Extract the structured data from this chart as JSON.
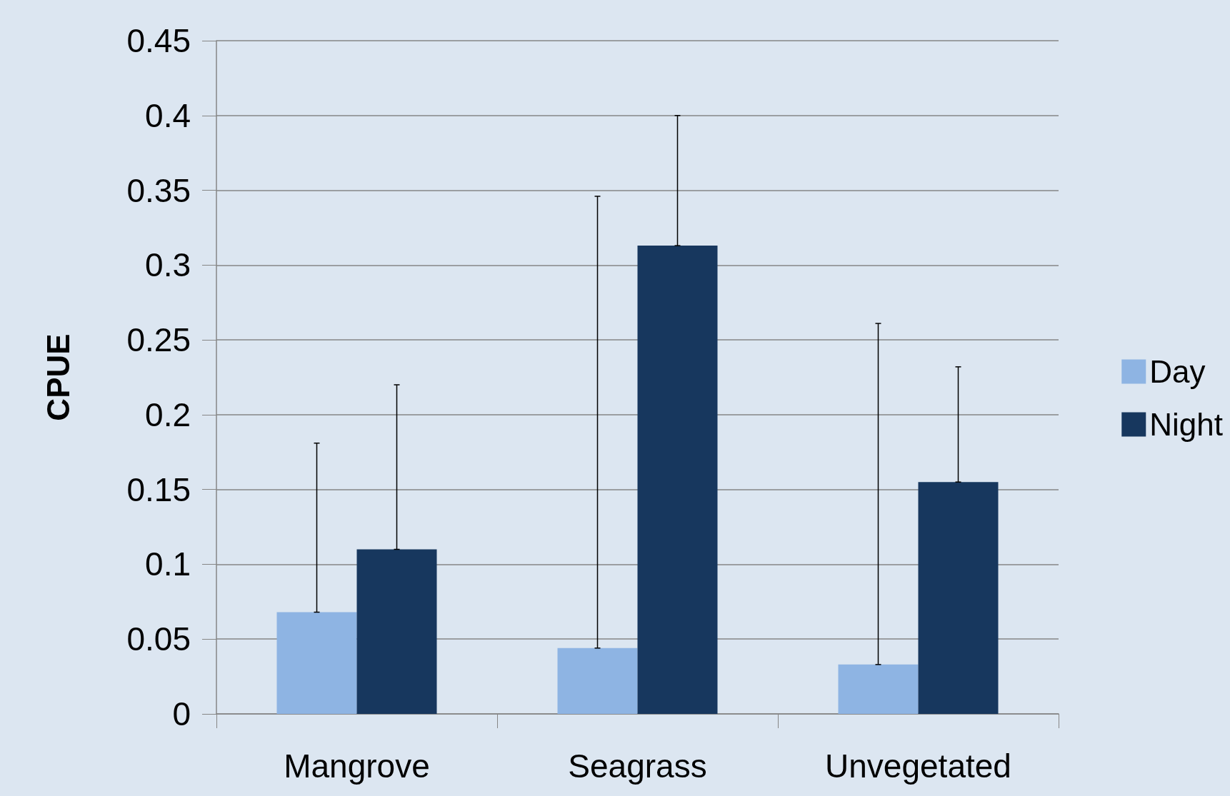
{
  "chart_data": {
    "type": "bar",
    "ylabel": "CPUE",
    "categories": [
      "Mangrove",
      "Seagrass",
      "Unvegetated"
    ],
    "series": [
      {
        "name": "Day",
        "color": "#8eb4e3",
        "values": [
          0.068,
          0.044,
          0.033
        ],
        "errors": [
          [
            0.068,
            0.181
          ],
          [
            0.044,
            0.346
          ],
          [
            0.033,
            0.261
          ]
        ]
      },
      {
        "name": "Night",
        "color": "#17375e",
        "values": [
          0.11,
          0.313,
          0.155
        ],
        "errors": [
          [
            0.11,
            0.22
          ],
          [
            0.313,
            0.4
          ],
          [
            0.155,
            0.232
          ]
        ]
      }
    ],
    "ylim": [
      0,
      0.45
    ],
    "yticks": [
      0,
      0.05,
      0.1,
      0.15,
      0.2,
      0.25,
      0.3,
      0.35,
      0.4,
      0.45
    ],
    "grid": "y",
    "legend": "right"
  }
}
